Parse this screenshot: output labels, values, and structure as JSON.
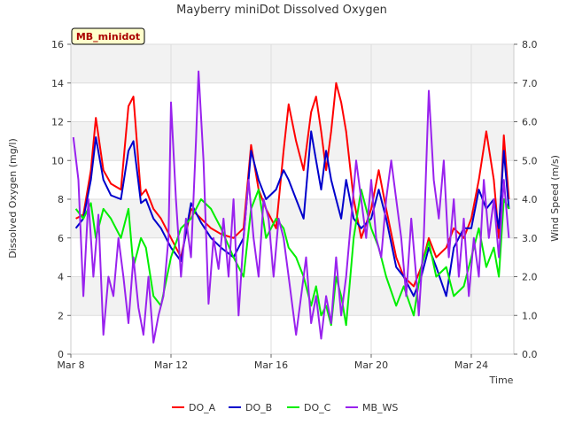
{
  "chart_data": {
    "type": "line",
    "title": "Mayberry miniDot Dissolved Oxygen",
    "badge": "MB_minidot",
    "xlabel": "Time",
    "ylabel": "Dissolved Oxygen (mg/l)",
    "y2label": "Wind Speed (m/s)",
    "xlim": [
      "2022-03-08",
      "2022-03-25.7"
    ],
    "ylim": [
      0,
      16
    ],
    "y2lim": [
      0,
      8
    ],
    "grid": true,
    "shaded_bands": true,
    "legend_position": "bottom",
    "x_ticks": [
      {
        "date": "2022-03-08",
        "label": "Mar 8"
      },
      {
        "date": "2022-03-12",
        "label": "Mar 12"
      },
      {
        "date": "2022-03-16",
        "label": "Mar 16"
      },
      {
        "date": "2022-03-20",
        "label": "Mar 20"
      },
      {
        "date": "2022-03-24",
        "label": "Mar 24"
      }
    ],
    "y_ticks": [
      "0",
      "2",
      "4",
      "6",
      "8",
      "10",
      "12",
      "14",
      "16"
    ],
    "y2_ticks": [
      "0.0",
      "1.0",
      "2.0",
      "3.0",
      "4.0",
      "5.0",
      "6.0",
      "7.0",
      "8.0"
    ],
    "series": [
      {
        "name": "DO_A",
        "color": "#ff0000",
        "axis": "left",
        "points": [
          [
            "2022-03-08.2",
            7.0
          ],
          [
            "2022-03-08.5",
            7.2
          ],
          [
            "2022-03-08.8",
            9.5
          ],
          [
            "2022-03-09.0",
            12.2
          ],
          [
            "2022-03-09.3",
            9.5
          ],
          [
            "2022-03-09.6",
            8.8
          ],
          [
            "2022-03-10.0",
            8.5
          ],
          [
            "2022-03-10.3",
            12.8
          ],
          [
            "2022-03-10.5",
            13.3
          ],
          [
            "2022-03-10.8",
            8.2
          ],
          [
            "2022-03-11.0",
            8.5
          ],
          [
            "2022-03-11.3",
            7.5
          ],
          [
            "2022-03-11.6",
            7.0
          ],
          [
            "2022-03-12.0",
            6.0
          ],
          [
            "2022-03-12.4",
            5.0
          ],
          [
            "2022-03-12.8",
            7.5
          ],
          [
            "2022-03-13.2",
            7.0
          ],
          [
            "2022-03-13.6",
            6.5
          ],
          [
            "2022-03-14.0",
            6.2
          ],
          [
            "2022-03-14.5",
            6.0
          ],
          [
            "2022-03-14.9",
            6.5
          ],
          [
            "2022-03-15.2",
            10.8
          ],
          [
            "2022-03-15.5",
            8.5
          ],
          [
            "2022-03-15.8",
            7.5
          ],
          [
            "2022-03-16.2",
            6.5
          ],
          [
            "2022-03-16.5",
            10.5
          ],
          [
            "2022-03-16.7",
            12.9
          ],
          [
            "2022-03-17.0",
            11.0
          ],
          [
            "2022-03-17.3",
            9.5
          ],
          [
            "2022-03-17.6",
            12.5
          ],
          [
            "2022-03-17.8",
            13.3
          ],
          [
            "2022-03-18.0",
            11.5
          ],
          [
            "2022-03-18.2",
            9.5
          ],
          [
            "2022-03-18.4",
            11.5
          ],
          [
            "2022-03-18.6",
            14.0
          ],
          [
            "2022-03-18.8",
            13.0
          ],
          [
            "2022-03-19.0",
            11.5
          ],
          [
            "2022-03-19.3",
            8.0
          ],
          [
            "2022-03-19.6",
            6.0
          ],
          [
            "2022-03-20.0",
            7.5
          ],
          [
            "2022-03-20.3",
            9.5
          ],
          [
            "2022-03-20.6",
            7.5
          ],
          [
            "2022-03-21.0",
            5.0
          ],
          [
            "2022-03-21.3",
            4.0
          ],
          [
            "2022-03-21.7",
            3.5
          ],
          [
            "2022-03-22.0",
            4.5
          ],
          [
            "2022-03-22.3",
            6.0
          ],
          [
            "2022-03-22.6",
            5.0
          ],
          [
            "2022-03-23.0",
            5.5
          ],
          [
            "2022-03-23.3",
            6.5
          ],
          [
            "2022-03-23.7",
            6.0
          ],
          [
            "2022-03-24.0",
            7.0
          ],
          [
            "2022-03-24.3",
            9.0
          ],
          [
            "2022-03-24.6",
            11.5
          ],
          [
            "2022-03-24.9",
            9.0
          ],
          [
            "2022-03-25.1",
            6.0
          ],
          [
            "2022-03-25.3",
            11.3
          ],
          [
            "2022-03-25.5",
            8.0
          ]
        ]
      },
      {
        "name": "DO_B",
        "color": "#0000cc",
        "axis": "left",
        "points": [
          [
            "2022-03-08.2",
            6.5
          ],
          [
            "2022-03-08.5",
            7.0
          ],
          [
            "2022-03-08.8",
            9.0
          ],
          [
            "2022-03-09.0",
            11.2
          ],
          [
            "2022-03-09.3",
            9.0
          ],
          [
            "2022-03-09.6",
            8.2
          ],
          [
            "2022-03-10.0",
            8.0
          ],
          [
            "2022-03-10.3",
            10.5
          ],
          [
            "2022-03-10.5",
            11.0
          ],
          [
            "2022-03-10.8",
            7.8
          ],
          [
            "2022-03-11.0",
            8.0
          ],
          [
            "2022-03-11.3",
            7.0
          ],
          [
            "2022-03-11.6",
            6.5
          ],
          [
            "2022-03-12.0",
            5.5
          ],
          [
            "2022-03-12.4",
            4.8
          ],
          [
            "2022-03-12.8",
            7.8
          ],
          [
            "2022-03-13.2",
            6.8
          ],
          [
            "2022-03-13.6",
            6.0
          ],
          [
            "2022-03-14.0",
            5.5
          ],
          [
            "2022-03-14.5",
            5.0
          ],
          [
            "2022-03-14.9",
            6.0
          ],
          [
            "2022-03-15.2",
            10.5
          ],
          [
            "2022-03-15.5",
            9.0
          ],
          [
            "2022-03-15.8",
            8.0
          ],
          [
            "2022-03-16.2",
            8.5
          ],
          [
            "2022-03-16.5",
            9.5
          ],
          [
            "2022-03-16.7",
            9.0
          ],
          [
            "2022-03-17.0",
            8.0
          ],
          [
            "2022-03-17.3",
            7.0
          ],
          [
            "2022-03-17.6",
            11.5
          ],
          [
            "2022-03-17.8",
            10.0
          ],
          [
            "2022-03-18.0",
            8.5
          ],
          [
            "2022-03-18.2",
            10.5
          ],
          [
            "2022-03-18.4",
            9.0
          ],
          [
            "2022-03-18.6",
            8.0
          ],
          [
            "2022-03-18.8",
            7.0
          ],
          [
            "2022-03-19.0",
            9.0
          ],
          [
            "2022-03-19.3",
            7.0
          ],
          [
            "2022-03-19.6",
            6.5
          ],
          [
            "2022-03-20.0",
            7.0
          ],
          [
            "2022-03-20.3",
            8.5
          ],
          [
            "2022-03-20.6",
            7.0
          ],
          [
            "2022-03-21.0",
            4.5
          ],
          [
            "2022-03-21.3",
            4.0
          ],
          [
            "2022-03-21.7",
            3.0
          ],
          [
            "2022-03-22.0",
            4.0
          ],
          [
            "2022-03-22.3",
            5.5
          ],
          [
            "2022-03-22.6",
            4.5
          ],
          [
            "2022-03-23.0",
            3.0
          ],
          [
            "2022-03-23.3",
            5.5
          ],
          [
            "2022-03-23.7",
            6.5
          ],
          [
            "2022-03-24.0",
            6.5
          ],
          [
            "2022-03-24.3",
            8.5
          ],
          [
            "2022-03-24.6",
            7.5
          ],
          [
            "2022-03-24.9",
            8.0
          ],
          [
            "2022-03-25.1",
            6.5
          ],
          [
            "2022-03-25.3",
            10.5
          ],
          [
            "2022-03-25.5",
            7.5
          ]
        ]
      },
      {
        "name": "DO_C",
        "color": "#00ee00",
        "axis": "left",
        "points": [
          [
            "2022-03-08.2",
            7.5
          ],
          [
            "2022-03-08.5",
            7.0
          ],
          [
            "2022-03-08.8",
            7.8
          ],
          [
            "2022-03-09.0",
            6.0
          ],
          [
            "2022-03-09.3",
            7.5
          ],
          [
            "2022-03-09.6",
            7.0
          ],
          [
            "2022-03-10.0",
            6.0
          ],
          [
            "2022-03-10.3",
            7.5
          ],
          [
            "2022-03-10.5",
            4.5
          ],
          [
            "2022-03-10.8",
            6.0
          ],
          [
            "2022-03-11.0",
            5.5
          ],
          [
            "2022-03-11.3",
            3.0
          ],
          [
            "2022-03-11.6",
            2.5
          ],
          [
            "2022-03-12.0",
            5.0
          ],
          [
            "2022-03-12.4",
            6.5
          ],
          [
            "2022-03-12.8",
            7.0
          ],
          [
            "2022-03-13.2",
            8.0
          ],
          [
            "2022-03-13.6",
            7.5
          ],
          [
            "2022-03-14.0",
            6.5
          ],
          [
            "2022-03-14.5",
            5.0
          ],
          [
            "2022-03-14.9",
            4.0
          ],
          [
            "2022-03-15.2",
            7.5
          ],
          [
            "2022-03-15.5",
            8.5
          ],
          [
            "2022-03-15.8",
            6.0
          ],
          [
            "2022-03-16.2",
            7.0
          ],
          [
            "2022-03-16.5",
            6.5
          ],
          [
            "2022-03-16.7",
            5.5
          ],
          [
            "2022-03-17.0",
            5.0
          ],
          [
            "2022-03-17.3",
            4.0
          ],
          [
            "2022-03-17.6",
            2.5
          ],
          [
            "2022-03-17.8",
            3.5
          ],
          [
            "2022-03-18.0",
            2.0
          ],
          [
            "2022-03-18.2",
            2.5
          ],
          [
            "2022-03-18.4",
            1.5
          ],
          [
            "2022-03-18.6",
            4.0
          ],
          [
            "2022-03-18.8",
            3.0
          ],
          [
            "2022-03-19.0",
            1.5
          ],
          [
            "2022-03-19.3",
            6.0
          ],
          [
            "2022-03-19.6",
            8.5
          ],
          [
            "2022-03-20.0",
            6.5
          ],
          [
            "2022-03-20.3",
            5.5
          ],
          [
            "2022-03-20.6",
            4.0
          ],
          [
            "2022-03-21.0",
            2.5
          ],
          [
            "2022-03-21.3",
            3.5
          ],
          [
            "2022-03-21.7",
            2.0
          ],
          [
            "2022-03-22.0",
            4.5
          ],
          [
            "2022-03-22.3",
            5.8
          ],
          [
            "2022-03-22.6",
            4.0
          ],
          [
            "2022-03-23.0",
            4.5
          ],
          [
            "2022-03-23.3",
            3.0
          ],
          [
            "2022-03-23.7",
            3.5
          ],
          [
            "2022-03-24.0",
            5.0
          ],
          [
            "2022-03-24.3",
            6.5
          ],
          [
            "2022-03-24.6",
            4.5
          ],
          [
            "2022-03-24.9",
            5.5
          ],
          [
            "2022-03-25.1",
            4.0
          ],
          [
            "2022-03-25.3",
            8.0
          ],
          [
            "2022-03-25.5",
            7.5
          ]
        ]
      },
      {
        "name": "MB_WS",
        "color": "#9922ee",
        "axis": "right",
        "points": [
          [
            "2022-03-08.1",
            5.6
          ],
          [
            "2022-03-08.3",
            4.5
          ],
          [
            "2022-03-08.5",
            1.5
          ],
          [
            "2022-03-08.7",
            4.0
          ],
          [
            "2022-03-08.9",
            2.0
          ],
          [
            "2022-03-09.1",
            3.6
          ],
          [
            "2022-03-09.3",
            0.5
          ],
          [
            "2022-03-09.5",
            2.0
          ],
          [
            "2022-03-09.7",
            1.5
          ],
          [
            "2022-03-09.9",
            3.0
          ],
          [
            "2022-03-10.1",
            2.0
          ],
          [
            "2022-03-10.3",
            0.8
          ],
          [
            "2022-03-10.5",
            2.5
          ],
          [
            "2022-03-10.7",
            1.2
          ],
          [
            "2022-03-10.9",
            0.5
          ],
          [
            "2022-03-11.1",
            2.0
          ],
          [
            "2022-03-11.3",
            0.3
          ],
          [
            "2022-03-11.5",
            1.0
          ],
          [
            "2022-03-11.7",
            1.5
          ],
          [
            "2022-03-11.9",
            3.0
          ],
          [
            "2022-03-12.0",
            6.5
          ],
          [
            "2022-03-12.2",
            4.0
          ],
          [
            "2022-03-12.4",
            2.0
          ],
          [
            "2022-03-12.6",
            3.5
          ],
          [
            "2022-03-12.8",
            2.5
          ],
          [
            "2022-03-13.0",
            5.5
          ],
          [
            "2022-03-13.1",
            7.3
          ],
          [
            "2022-03-13.3",
            5.0
          ],
          [
            "2022-03-13.5",
            1.3
          ],
          [
            "2022-03-13.7",
            3.0
          ],
          [
            "2022-03-13.9",
            2.2
          ],
          [
            "2022-03-14.1",
            3.5
          ],
          [
            "2022-03-14.3",
            2.0
          ],
          [
            "2022-03-14.5",
            4.0
          ],
          [
            "2022-03-14.7",
            1.0
          ],
          [
            "2022-03-14.9",
            3.0
          ],
          [
            "2022-03-15.1",
            4.5
          ],
          [
            "2022-03-15.3",
            3.0
          ],
          [
            "2022-03-15.5",
            2.0
          ],
          [
            "2022-03-15.7",
            4.0
          ],
          [
            "2022-03-15.9",
            3.5
          ],
          [
            "2022-03-16.1",
            2.0
          ],
          [
            "2022-03-16.3",
            3.5
          ],
          [
            "2022-03-16.5",
            3.0
          ],
          [
            "2022-03-16.7",
            2.0
          ],
          [
            "2022-03-16.9",
            1.0
          ],
          [
            "2022-03-17.0",
            0.5
          ],
          [
            "2022-03-17.2",
            1.5
          ],
          [
            "2022-03-17.4",
            2.5
          ],
          [
            "2022-03-17.6",
            0.8
          ],
          [
            "2022-03-17.8",
            1.5
          ],
          [
            "2022-03-18.0",
            0.4
          ],
          [
            "2022-03-18.2",
            1.5
          ],
          [
            "2022-03-18.4",
            0.8
          ],
          [
            "2022-03-18.6",
            2.5
          ],
          [
            "2022-03-18.8",
            1.0
          ],
          [
            "2022-03-19.0",
            2.0
          ],
          [
            "2022-03-19.2",
            3.5
          ],
          [
            "2022-03-19.4",
            5.0
          ],
          [
            "2022-03-19.6",
            4.0
          ],
          [
            "2022-03-19.8",
            3.0
          ],
          [
            "2022-03-20.0",
            4.5
          ],
          [
            "2022-03-20.2",
            3.0
          ],
          [
            "2022-03-20.4",
            2.5
          ],
          [
            "2022-03-20.6",
            4.0
          ],
          [
            "2022-03-20.8",
            5.0
          ],
          [
            "2022-03-21.0",
            4.0
          ],
          [
            "2022-03-21.2",
            3.0
          ],
          [
            "2022-03-21.4",
            1.5
          ],
          [
            "2022-03-21.6",
            3.5
          ],
          [
            "2022-03-21.8",
            2.0
          ],
          [
            "2022-03-21.9",
            1.0
          ],
          [
            "2022-03-22.1",
            3.0
          ],
          [
            "2022-03-22.3",
            6.8
          ],
          [
            "2022-03-22.5",
            4.5
          ],
          [
            "2022-03-22.7",
            3.5
          ],
          [
            "2022-03-22.9",
            5.0
          ],
          [
            "2022-03-23.1",
            2.5
          ],
          [
            "2022-03-23.3",
            4.0
          ],
          [
            "2022-03-23.5",
            2.0
          ],
          [
            "2022-03-23.7",
            3.5
          ],
          [
            "2022-03-23.9",
            1.5
          ],
          [
            "2022-03-24.1",
            3.0
          ],
          [
            "2022-03-24.3",
            2.0
          ],
          [
            "2022-03-24.5",
            4.5
          ],
          [
            "2022-03-24.7",
            3.0
          ],
          [
            "2022-03-24.9",
            4.0
          ],
          [
            "2022-03-25.1",
            2.5
          ],
          [
            "2022-03-25.3",
            4.5
          ],
          [
            "2022-03-25.5",
            3.0
          ]
        ]
      }
    ]
  }
}
